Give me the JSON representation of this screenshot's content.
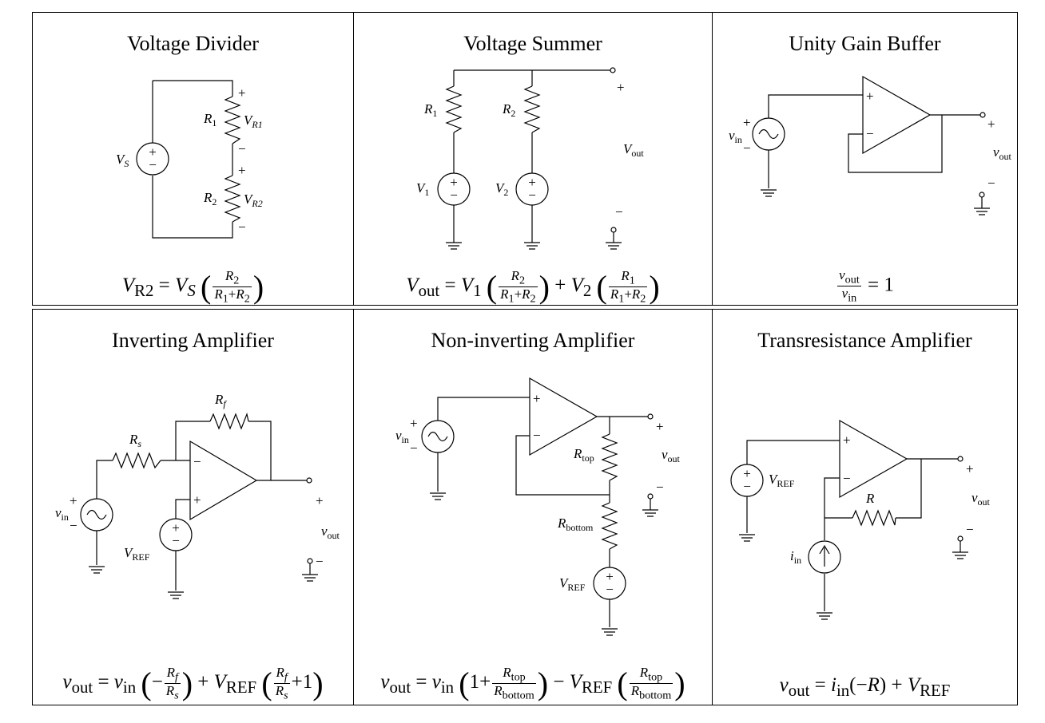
{
  "panels": [
    {
      "title": "Voltage Divider",
      "equation": "V_R2 = V_S (R2 / (R1+R2))"
    },
    {
      "title": "Voltage Summer",
      "equation": "V_out = V1 (R2/(R1+R2)) + V2 (R1/(R1+R2))"
    },
    {
      "title": "Unity Gain Buffer",
      "equation": "v_out / v_in = 1"
    },
    {
      "title": "Inverting Amplifier",
      "equation": "v_out = v_in (-Rf/Rs) + V_REF (Rf/Rs + 1)"
    },
    {
      "title": "Non-inverting Amplifier",
      "equation": "v_out = v_in (1 + Rtop/Rbottom) - V_REF (Rtop/Rbottom)"
    },
    {
      "title": "Transresistance Amplifier",
      "equation": "v_out = i_in(-R) + V_REF"
    }
  ],
  "symbols": {
    "plus": "+",
    "minus": "−",
    "equals": "=",
    "V": "V",
    "v": "v",
    "i": "i",
    "R": "R",
    "sub_S": "S",
    "sub_1": "1",
    "sub_2": "2",
    "sub_R1": "R1",
    "sub_R2": "R2",
    "sub_out": "out",
    "sub_in": "in",
    "sub_REF": "REF",
    "sub_f": "f",
    "sub_s": "s",
    "sub_top": "top",
    "sub_bottom": "bottom",
    "one": "1",
    "lparen": "(",
    "rparen": ")"
  }
}
